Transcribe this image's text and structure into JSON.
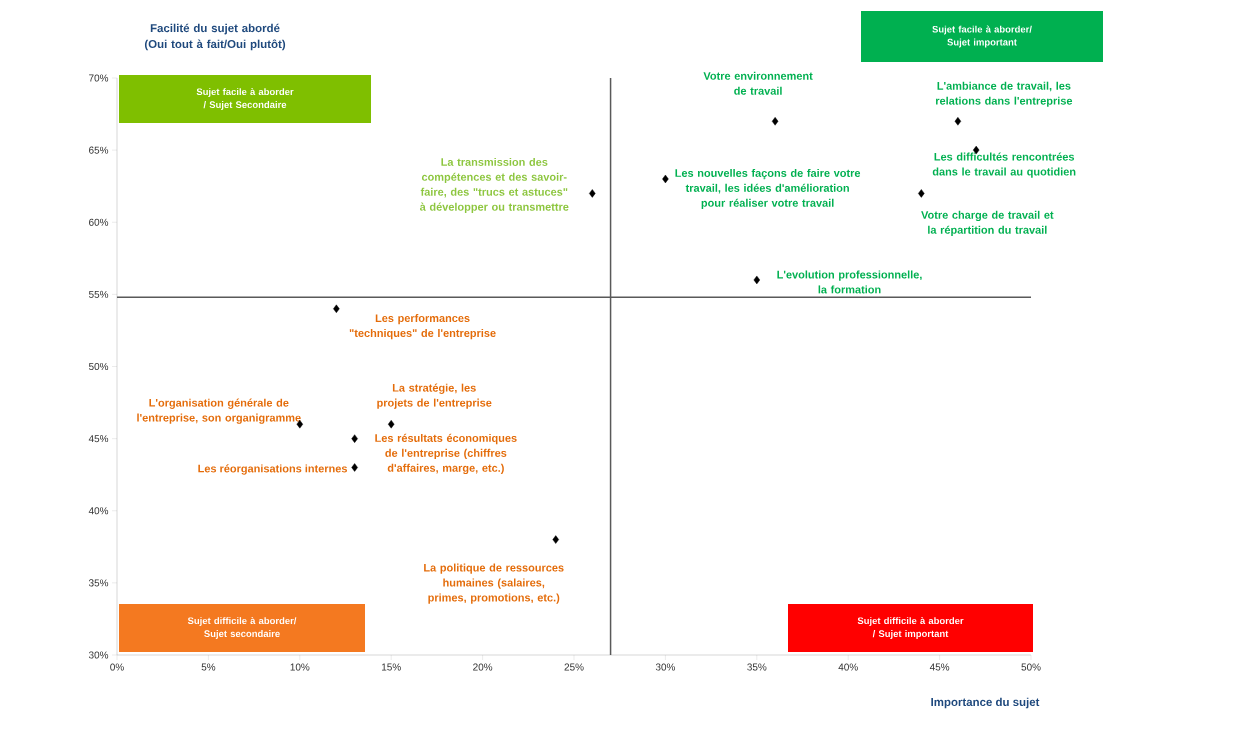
{
  "chart_data": {
    "type": "scatter",
    "ylabel": "Facilité du sujet abordé (Oui tout à fait/Oui plutôt)",
    "xlabel": "Importance du sujet",
    "xlim": [
      0,
      50
    ],
    "ylim": [
      30,
      70
    ],
    "xticks": [
      {
        "value": 0,
        "label": "0%"
      },
      {
        "value": 5,
        "label": "5%"
      },
      {
        "value": 10,
        "label": "10%"
      },
      {
        "value": 15,
        "label": "15%"
      },
      {
        "value": 20,
        "label": "20%"
      },
      {
        "value": 25,
        "label": "25%"
      },
      {
        "value": 30,
        "label": "30%"
      },
      {
        "value": 35,
        "label": "35%"
      },
      {
        "value": 40,
        "label": "40%"
      },
      {
        "value": 45,
        "label": "45%"
      },
      {
        "value": 50,
        "label": "50%"
      }
    ],
    "yticks": [
      {
        "value": 30,
        "label": "30%"
      },
      {
        "value": 35,
        "label": "35%"
      },
      {
        "value": 40,
        "label": "40%"
      },
      {
        "value": 45,
        "label": "45%"
      },
      {
        "value": 50,
        "label": "50%"
      },
      {
        "value": 55,
        "label": "55%"
      },
      {
        "value": 60,
        "label": "60%"
      },
      {
        "value": 65,
        "label": "65%"
      },
      {
        "value": 70,
        "label": "70%"
      }
    ],
    "marker": "diamond",
    "grid": false,
    "series": [
      {
        "color": "#000000",
        "x": [
          12,
          10,
          13,
          13,
          15,
          24,
          26,
          30,
          36,
          35,
          46,
          47,
          44
        ],
        "values": [
          54,
          46,
          45,
          43,
          46,
          38,
          62,
          63,
          67,
          56,
          67,
          65,
          62
        ],
        "value_labels": [
          "Les performances \"techniques\" de l'entreprise",
          "L'organisation générale de l'entreprise, son organigramme",
          "Les résultats économiques de l'entreprise (chiffres d'affaires, marge, etc.)",
          "Les réorganisations internes",
          "La stratégie, les projets de l'entreprise",
          "La politique de ressources humaines (salaires, primes, promotions, etc.)",
          "La transmission des compétences et des savoir-faire, des \"trucs et astuces\" à développer ou transmettre",
          "Les nouvelles façons de faire votre travail, les idées d'amélioration pour réaliser votre travail",
          "Votre environnement de travail",
          "L'evolution professionnelle, la formation",
          "L'ambiance de travail, les relations dans l'entreprise",
          "Les difficultés rencontrées dans le travail au quotidien",
          "Votre charge de travail et la répartition du travail"
        ]
      }
    ],
    "ref_lines": [
      {
        "axis": "x",
        "value": 27,
        "color": "#595959"
      },
      {
        "axis": "y",
        "value": 54.8,
        "color": "#595959"
      }
    ],
    "annotations": [
      "Sujet facile à aborder / Sujet Secondaire",
      "Sujet facile à aborder/ Sujet important",
      "Sujet difficile à aborder/ Sujet secondaire",
      "Sujet difficile à aborder / Sujet important"
    ]
  }
}
